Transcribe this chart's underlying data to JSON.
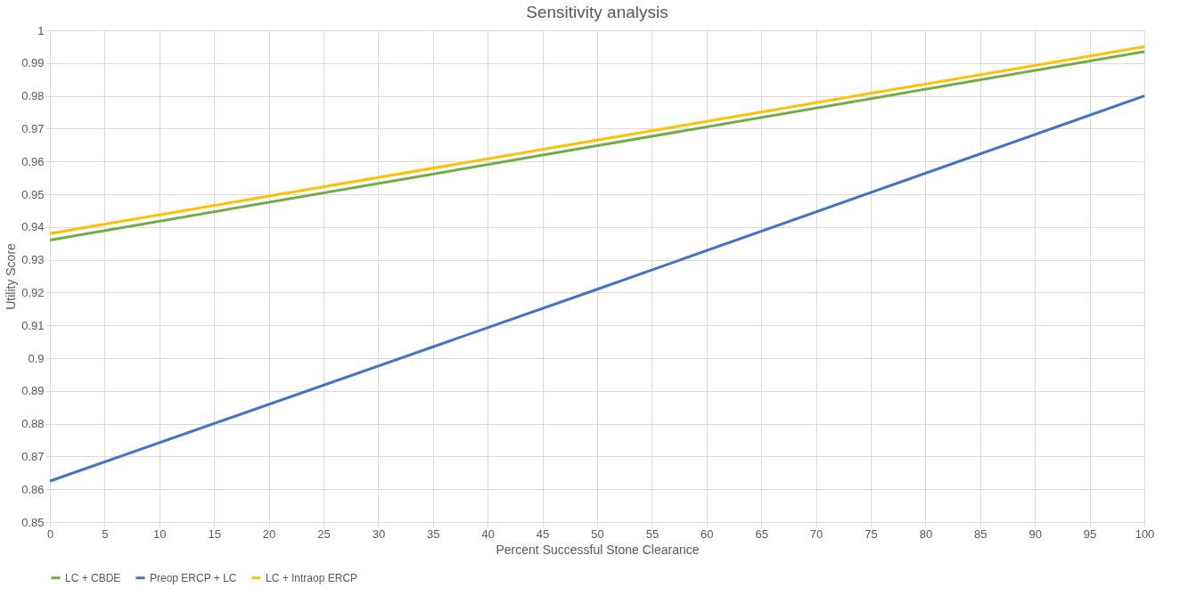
{
  "chart_data": {
    "type": "line",
    "title": "Sensitivity analysis",
    "xlabel": "Percent Successful Stone Clearance",
    "ylabel": "Utility Score",
    "x": [
      0,
      50,
      100
    ],
    "series": [
      {
        "name": "LC + CBDE",
        "color": "#70ad47",
        "values": [
          0.936,
          0.9648,
          0.9935
        ]
      },
      {
        "name": "Preop ERCP + LC",
        "color": "#4472c4",
        "values": [
          0.8625,
          0.921,
          0.98
        ]
      },
      {
        "name": "LC + Intraop ERCP",
        "color": "#ffc000",
        "values": [
          0.938,
          0.9665,
          0.995
        ]
      }
    ],
    "xlim": [
      0,
      100
    ],
    "xticks": [
      0,
      5,
      10,
      15,
      20,
      25,
      30,
      35,
      40,
      45,
      50,
      55,
      60,
      65,
      70,
      75,
      80,
      85,
      90,
      95,
      100
    ],
    "ylim": [
      0.85,
      1
    ],
    "yticks": [
      0.85,
      0.86,
      0.87,
      0.88,
      0.89,
      0.9,
      0.91,
      0.92,
      0.93,
      0.94,
      0.95,
      0.96,
      0.97,
      0.98,
      0.99,
      1
    ],
    "grid": true,
    "legend": "bottom",
    "marker": "none",
    "line_style": "solid"
  }
}
